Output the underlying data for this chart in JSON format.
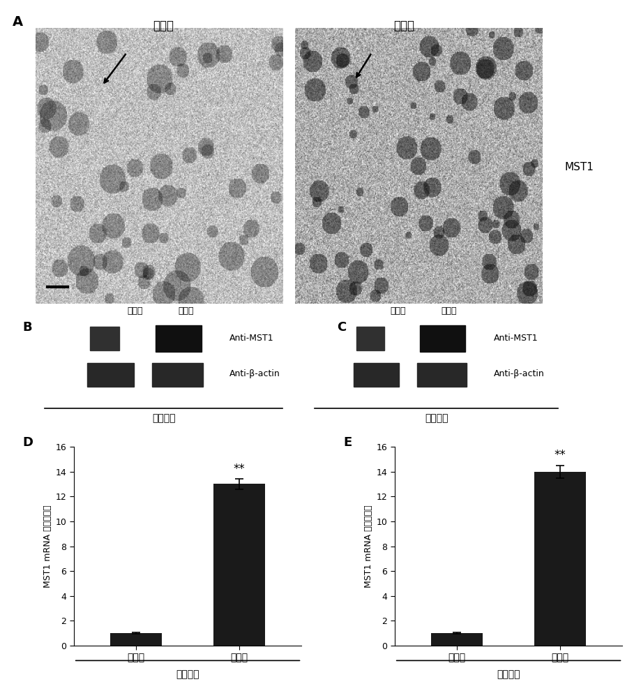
{
  "panel_A_title_left": "对照组",
  "panel_A_title_right": "高糖组",
  "panel_A_label": "MST1",
  "panel_A_label_letter": "A",
  "panel_B_letter": "B",
  "panel_C_letter": "C",
  "panel_D_letter": "D",
  "panel_E_letter": "E",
  "panel_B_labels_top": [
    "对照组",
    "高糖组"
  ],
  "panel_C_labels_top": [
    "对照组",
    "高糖组"
  ],
  "panel_B_band1": "Anti-MST1",
  "panel_B_band2": "Anti-β-actin",
  "panel_C_band1": "Anti-MST1",
  "panel_C_band2": "Anti-β-actin",
  "panel_B_xlabel": "心肌组织",
  "panel_C_xlabel": "心肌细胞",
  "panel_D_tissue_xlabel": "心肌组织",
  "panel_E_cell_xlabel": "心肌细胞",
  "panel_D_ylabel": "MST1 mRNA 相对表达量",
  "panel_E_ylabel": "MST1 mRNA 相对表达量",
  "panel_D_categories": [
    "对照组",
    "高糖组"
  ],
  "panel_E_categories": [
    "对照组",
    "高糖组"
  ],
  "panel_D_values": [
    1.0,
    13.0
  ],
  "panel_E_values": [
    1.0,
    14.0
  ],
  "panel_D_errors": [
    0.05,
    0.4
  ],
  "panel_E_errors": [
    0.05,
    0.5
  ],
  "panel_D_ylim": [
    0,
    16
  ],
  "panel_E_ylim": [
    0,
    16
  ],
  "panel_D_yticks": [
    0,
    2,
    4,
    6,
    8,
    10,
    12,
    14,
    16
  ],
  "panel_E_yticks": [
    0,
    2,
    4,
    6,
    8,
    10,
    12,
    14,
    16
  ],
  "bar_color": "#1a1a1a",
  "bg_color": "#ffffff",
  "significance": "**"
}
